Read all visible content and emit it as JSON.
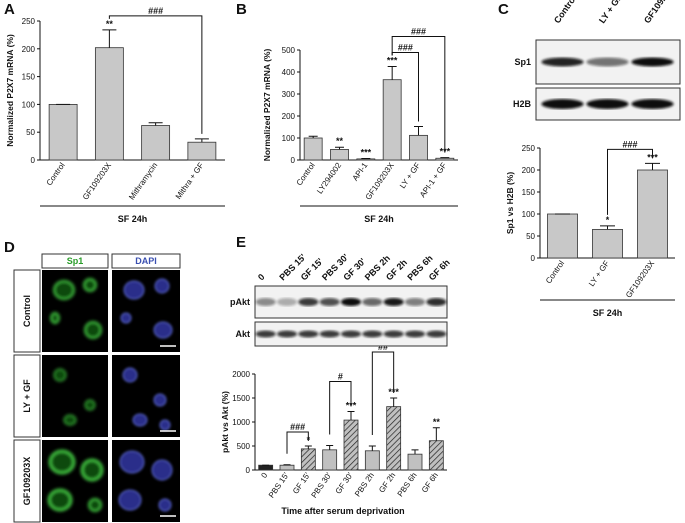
{
  "chart_data": [
    {
      "type": "bar",
      "panel": "A",
      "ylabel": "Normalized P2X7 mRNA (%)",
      "categories": [
        "Control",
        "GF109203X",
        "Mithramycin",
        "Mithra + GF"
      ],
      "values": [
        100,
        202,
        62,
        32
      ],
      "errors": [
        0,
        32,
        5,
        6
      ],
      "color": "#c8c8c8",
      "ylim": [
        0,
        250
      ],
      "yticks": [
        0,
        50,
        100,
        150,
        200,
        250
      ],
      "stars": [
        null,
        "**",
        null,
        null
      ],
      "brackets": [
        {
          "text": "###",
          "between": [
            1,
            3
          ]
        }
      ],
      "group_label": "SF 24h"
    },
    {
      "type": "bar",
      "panel": "B",
      "ylabel": "Normalized P2X7 mRNA (%)",
      "categories": [
        "Control",
        "LY294002",
        "API-1",
        "GF109203X",
        "LY + GF",
        "API-1 + GF"
      ],
      "values": [
        100,
        48,
        5,
        365,
        112,
        8
      ],
      "errors": [
        8,
        10,
        2,
        60,
        40,
        3
      ],
      "color": "#c8c8c8",
      "ylim": [
        0,
        500
      ],
      "yticks": [
        0,
        100,
        200,
        300,
        400,
        500
      ],
      "stars": [
        null,
        "**",
        "***",
        "***",
        null,
        "***"
      ],
      "brackets": [
        {
          "text": "###",
          "between": [
            3,
            4
          ]
        },
        {
          "text": "###",
          "between": [
            3,
            5
          ]
        }
      ],
      "group_label": "SF 24h"
    },
    {
      "type": "bar",
      "panel": "C",
      "ylabel": "Sp1 vs H2B (%)",
      "categories": [
        "Control",
        "LY + GF",
        "GF109203X"
      ],
      "values": [
        100,
        65,
        200
      ],
      "errors": [
        0,
        8,
        15
      ],
      "color": "#c8c8c8",
      "ylim": [
        0,
        250
      ],
      "yticks": [
        0,
        50,
        100,
        150,
        200,
        250
      ],
      "stars": [
        null,
        "*",
        "***"
      ],
      "brackets": [
        {
          "text": "###",
          "between": [
            1,
            2
          ]
        }
      ],
      "group_label": "SF 24h",
      "blot_rows": [
        "Sp1",
        "H2B"
      ]
    },
    {
      "type": "bar",
      "panel": "E",
      "ylabel": "pAkt vs Akt (%)",
      "xlabel": "Time after serum deprivation",
      "categories": [
        "0",
        "PBS 15'",
        "GF 15'",
        "PBS 30'",
        "GF 30'",
        "PBS 2h",
        "GF 2h",
        "PBS 6h",
        "GF 6h"
      ],
      "values": [
        100,
        100,
        440,
        420,
        1040,
        400,
        1320,
        330,
        610
      ],
      "errors": [
        0,
        10,
        60,
        90,
        180,
        100,
        180,
        90,
        270
      ],
      "colors": [
        "#222222",
        "#c0c0c0",
        "#c0c0c0",
        "#c0c0c0",
        "#c0c0c0",
        "#c0c0c0",
        "#c0c0c0",
        "#c0c0c0",
        "#c0c0c0"
      ],
      "hatch": [
        false,
        false,
        true,
        false,
        true,
        false,
        true,
        false,
        true
      ],
      "ylim": [
        0,
        2000
      ],
      "yticks": [
        0,
        500,
        1000,
        1500,
        2000
      ],
      "stars": [
        null,
        null,
        "*",
        null,
        "***",
        null,
        "***",
        null,
        "**"
      ],
      "brackets": [
        {
          "text": "###",
          "between": [
            1,
            2
          ]
        },
        {
          "text": "#",
          "between": [
            3,
            4
          ]
        },
        {
          "text": "##",
          "between": [
            5,
            6
          ]
        }
      ],
      "blot_rows": [
        "pAkt",
        "Akt"
      ]
    }
  ],
  "figure_d": {
    "panel": "D",
    "columns": [
      "Sp1",
      "DAPI"
    ],
    "rows": [
      "Control",
      "LY + GF",
      "GF109203X"
    ]
  }
}
